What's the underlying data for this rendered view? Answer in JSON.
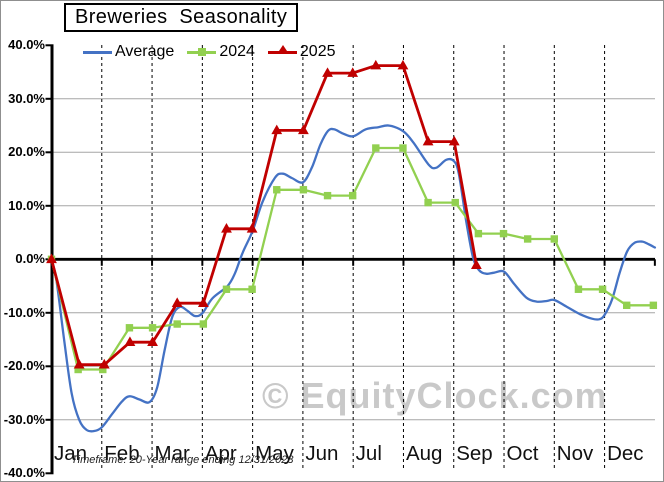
{
  "page": {
    "title": "Breweries  Seasonality",
    "watermark": "© EquityClock.com",
    "footnote": "Timeframe: 20-Year range ending 12/31/2023"
  },
  "legend": {
    "position": "top",
    "items": [
      {
        "label": "Average",
        "color": "#4472C4",
        "marker": "line"
      },
      {
        "label": "2024",
        "color": "#92D050",
        "marker": "square"
      },
      {
        "label": "2025",
        "color": "#C00000",
        "marker": "triangle"
      }
    ]
  },
  "chart_data": {
    "type": "line",
    "title": "Breweries Seasonality",
    "xlabel": "",
    "ylabel": "",
    "x_unit": "months, Jan=0 through Dec-end=12, points at半 half-month steps",
    "ylim": [
      -40,
      40
    ],
    "grid": {
      "horizontal": true,
      "vertical_month_dashed": true
    },
    "colors": {
      "gridline": "#a6a6a6",
      "month_gridline": "#000000",
      "zero_axis": "#000000",
      "watermark": "#c9c9c9"
    },
    "x_axis": {
      "tick_labels": [
        "Jan",
        "Feb",
        "Mar",
        "Apr",
        "May",
        "Jun",
        "Jul",
        "Aug",
        "Sep",
        "Oct",
        "Nov",
        "Dec"
      ]
    },
    "y_axis": {
      "ticks": [
        {
          "value": 40,
          "label": "40.0%"
        },
        {
          "value": 30,
          "label": "30.0%"
        },
        {
          "value": 20,
          "label": "20.0%"
        },
        {
          "value": 10,
          "label": "10.0%"
        },
        {
          "value": 0,
          "label": "0.0%"
        },
        {
          "value": -10,
          "label": "-10.0%"
        },
        {
          "value": -20,
          "label": "-20.0%"
        },
        {
          "value": -30,
          "label": "-30.0%"
        },
        {
          "value": -40,
          "label": "-40.0%"
        }
      ],
      "gridline_values": [
        30,
        20,
        10,
        -10,
        -20,
        -30
      ]
    },
    "series": [
      {
        "name": "Average",
        "color": "#4472C4",
        "style": "smooth-line",
        "points": [
          [
            0,
            0
          ],
          [
            0.1,
            -4
          ],
          [
            0.25,
            -15
          ],
          [
            0.4,
            -25
          ],
          [
            0.55,
            -30
          ],
          [
            0.7,
            -31.9
          ],
          [
            0.85,
            -32.1
          ],
          [
            1.0,
            -31.4
          ],
          [
            1.2,
            -29
          ],
          [
            1.4,
            -26.6
          ],
          [
            1.55,
            -25.6
          ],
          [
            1.75,
            -26.2
          ],
          [
            1.95,
            -26.7
          ],
          [
            2.1,
            -24
          ],
          [
            2.25,
            -17
          ],
          [
            2.4,
            -10.8
          ],
          [
            2.55,
            -8.9
          ],
          [
            2.7,
            -9.6
          ],
          [
            2.85,
            -10.6
          ],
          [
            3.0,
            -10.1
          ],
          [
            3.2,
            -7.3
          ],
          [
            3.5,
            -5.0
          ],
          [
            3.65,
            -2.6
          ],
          [
            3.8,
            1.2
          ],
          [
            4.0,
            5.3
          ],
          [
            4.2,
            10.8
          ],
          [
            4.45,
            15.3
          ],
          [
            4.6,
            16.0
          ],
          [
            4.78,
            15.2
          ],
          [
            5.0,
            14.4
          ],
          [
            5.18,
            17.2
          ],
          [
            5.35,
            21.5
          ],
          [
            5.5,
            24.0
          ],
          [
            5.62,
            24.3
          ],
          [
            5.8,
            23.5
          ],
          [
            6.0,
            23.0
          ],
          [
            6.25,
            24.3
          ],
          [
            6.5,
            24.7
          ],
          [
            6.72,
            25.0
          ],
          [
            7.0,
            23.9
          ],
          [
            7.2,
            21.8
          ],
          [
            7.5,
            17.7
          ],
          [
            7.65,
            17.1
          ],
          [
            7.85,
            18.6
          ],
          [
            8.0,
            18.4
          ],
          [
            8.1,
            16
          ],
          [
            8.25,
            7
          ],
          [
            8.38,
            0.5
          ],
          [
            8.5,
            -2.0
          ],
          [
            8.65,
            -2.7
          ],
          [
            8.8,
            -2.5
          ],
          [
            9.0,
            -2.3
          ],
          [
            9.2,
            -4.6
          ],
          [
            9.45,
            -7.2
          ],
          [
            9.65,
            -7.9
          ],
          [
            9.85,
            -7.8
          ],
          [
            10.0,
            -7.6
          ],
          [
            10.25,
            -8.9
          ],
          [
            10.5,
            -10.2
          ],
          [
            10.75,
            -11.1
          ],
          [
            10.9,
            -11.2
          ],
          [
            11.0,
            -10.4
          ],
          [
            11.15,
            -7.5
          ],
          [
            11.3,
            -2.5
          ],
          [
            11.45,
            1.5
          ],
          [
            11.6,
            3.1
          ],
          [
            11.75,
            3.3
          ],
          [
            11.88,
            2.8
          ],
          [
            12.0,
            2.2
          ]
        ]
      },
      {
        "name": "2024",
        "color": "#92D050",
        "marker": "square",
        "x": [
          0,
          0.53,
          1.02,
          1.55,
          2.01,
          2.5,
          3.02,
          3.48,
          3.99,
          4.48,
          5.01,
          5.49,
          5.99,
          6.45,
          6.99,
          7.49,
          8.03,
          8.49,
          8.99,
          9.47,
          10.0,
          10.48,
          10.96,
          11.44,
          11.97
        ],
        "values": [
          0,
          -20.6,
          -20.6,
          -12.8,
          -12.8,
          -12.1,
          -12.1,
          -5.6,
          -5.6,
          13.0,
          13.0,
          11.9,
          11.9,
          20.8,
          20.8,
          10.6,
          10.6,
          4.8,
          4.8,
          3.8,
          3.8,
          -5.6,
          -5.6,
          -8.6,
          -8.6
        ]
      },
      {
        "name": "2025",
        "color": "#C00000",
        "marker": "triangle",
        "x": [
          0,
          0.55,
          1.05,
          1.56,
          2.01,
          2.5,
          3.02,
          3.48,
          3.99,
          4.48,
          5.01,
          5.49,
          5.99,
          6.45,
          6.99,
          7.49,
          8.01,
          8.45
        ],
        "values": [
          0,
          -19.7,
          -19.7,
          -15.5,
          -15.5,
          -8.2,
          -8.2,
          5.7,
          5.7,
          24.1,
          24.1,
          34.8,
          34.8,
          36.2,
          36.2,
          22.0,
          22.0,
          -1.1
        ]
      }
    ]
  }
}
